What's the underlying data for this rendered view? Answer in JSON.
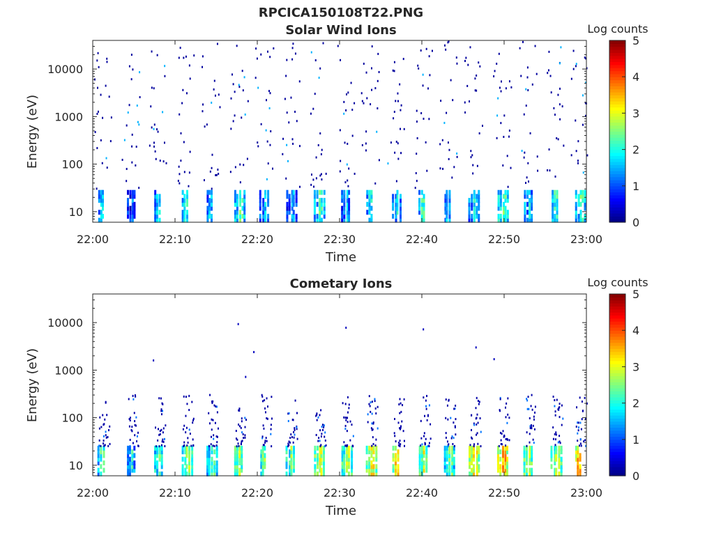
{
  "figure": {
    "title": "RPCICA150108T22.PNG"
  },
  "chart_data": [
    {
      "type": "heatmap",
      "title": "Solar Wind Ions",
      "xlabel": "Time",
      "ylabel": "Energy (eV)",
      "x_ticks": [
        "22:00",
        "22:10",
        "22:20",
        "22:30",
        "22:40",
        "22:50",
        "23:00"
      ],
      "x_range_minutes": [
        0,
        60
      ],
      "y_scale": "log",
      "y_range": [
        6,
        40000
      ],
      "y_ticks": [
        {
          "value": 10,
          "label": "10"
        },
        {
          "value": 100,
          "label": "100"
        },
        {
          "value": 1000,
          "label": "1000"
        },
        {
          "value": 10000,
          "label": "10000"
        }
      ],
      "colorbar": {
        "label": "Log counts",
        "range": [
          0,
          5
        ],
        "ticks": [
          "0",
          "1",
          "2",
          "3",
          "4",
          "5"
        ],
        "colormap": "jet"
      },
      "scan_times_minutes": [
        1.0,
        4.5,
        7.8,
        11.2,
        14.2,
        17.6,
        20.7,
        23.9,
        27.3,
        30.6,
        33.6,
        36.8,
        40.0,
        43.1,
        46.1,
        49.6,
        52.8,
        56.1,
        59.0
      ],
      "low_energy_band_eV": [
        6,
        28
      ],
      "low_energy_band_log_counts": [
        1.1,
        0.8,
        1.2,
        1.4,
        1.0,
        1.7,
        1.1,
        1.0,
        1.6,
        1.1,
        1.3,
        1.4,
        1.6,
        1.0,
        1.3,
        1.8,
        1.4,
        1.5,
        1.7
      ]
    },
    {
      "type": "heatmap",
      "title": "Cometary Ions",
      "xlabel": "Time",
      "ylabel": "Energy (eV)",
      "x_ticks": [
        "22:00",
        "22:10",
        "22:20",
        "22:30",
        "22:40",
        "22:50",
        "23:00"
      ],
      "x_range_minutes": [
        0,
        60
      ],
      "y_scale": "log",
      "y_range": [
        6,
        40000
      ],
      "y_ticks": [
        {
          "value": 10,
          "label": "10"
        },
        {
          "value": 100,
          "label": "100"
        },
        {
          "value": 1000,
          "label": "1000"
        },
        {
          "value": 10000,
          "label": "10000"
        }
      ],
      "colorbar": {
        "label": "Log counts",
        "range": [
          0,
          5
        ],
        "ticks": [
          "0",
          "1",
          "2",
          "3",
          "4",
          "5"
        ],
        "colormap": "jet"
      },
      "scan_times_minutes": [
        1.0,
        4.5,
        7.8,
        11.2,
        14.2,
        17.6,
        20.7,
        23.9,
        27.3,
        30.6,
        33.6,
        36.8,
        40.0,
        43.1,
        46.1,
        49.6,
        52.8,
        56.1,
        59.0
      ],
      "low_energy_band_eV": [
        6,
        25
      ],
      "low_energy_band_log_counts": [
        1.6,
        1.4,
        1.8,
        2.1,
        1.6,
        2.3,
        1.9,
        2.0,
        2.4,
        2.2,
        2.5,
        2.6,
        2.4,
        1.8,
        2.6,
        2.9,
        2.3,
        2.2,
        2.8
      ],
      "mid_energy_spread_eV": [
        25,
        300
      ],
      "isolated_points": [
        {
          "t": 17.6,
          "e": 9300,
          "v": 0.3
        },
        {
          "t": 30.7,
          "e": 7800,
          "v": 0.3
        },
        {
          "t": 40.1,
          "e": 7200,
          "v": 0.3
        },
        {
          "t": 7.3,
          "e": 1600,
          "v": 0.3
        },
        {
          "t": 19.5,
          "e": 2400,
          "v": 0.3
        },
        {
          "t": 46.5,
          "e": 3000,
          "v": 0.3
        },
        {
          "t": 48.7,
          "e": 1700,
          "v": 0.3
        },
        {
          "t": 18.5,
          "e": 720,
          "v": 0.3
        }
      ]
    }
  ]
}
